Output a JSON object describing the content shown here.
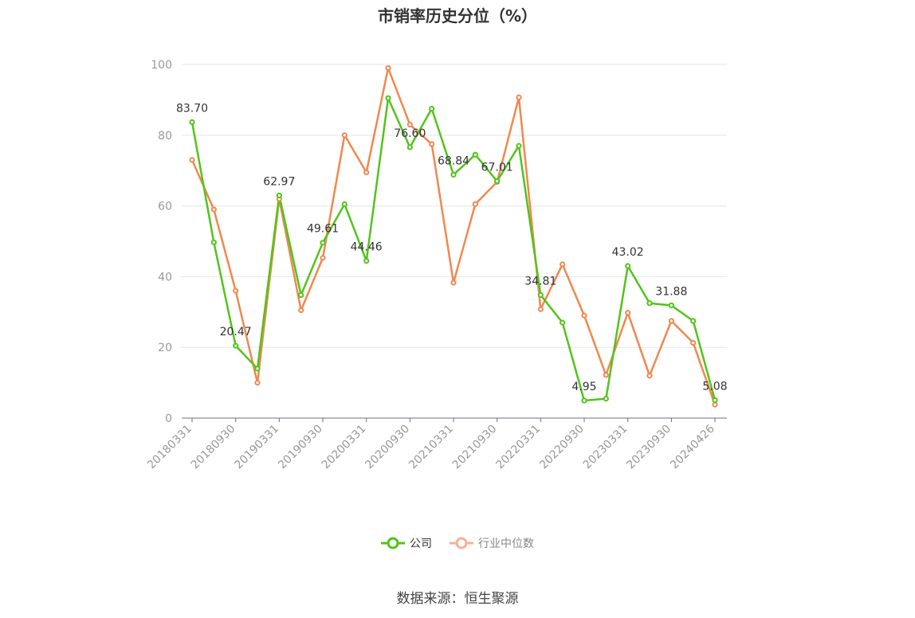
{
  "source_text": "数据来源：恒生聚源",
  "colors": {
    "company": "#52c41a",
    "industry": "#f0884f",
    "industry_legend": "#f7b196",
    "grid": "#e6e6e6",
    "axis": "#6e7079"
  },
  "chart_data": {
    "type": "line",
    "title": "市销率历史分位（%）",
    "xlabel": "",
    "ylabel": "",
    "ylim": [
      0,
      100
    ],
    "yticks": [
      0,
      20,
      40,
      60,
      80,
      100
    ],
    "grid": true,
    "legend_position": "bottom-center",
    "x": [
      "20180331",
      "20180630",
      "20180930",
      "20181231",
      "20190331",
      "20190630",
      "20190930",
      "20191231",
      "20200331",
      "20200630",
      "20200930",
      "20201231",
      "20210331",
      "20210630",
      "20210930",
      "20211231",
      "20220331",
      "20220630",
      "20220930",
      "20221231",
      "20230331",
      "20230630",
      "20230930",
      "20231231",
      "20240426"
    ],
    "xtick_labels": [
      "20180331",
      "20180930",
      "20190331",
      "20190930",
      "20200331",
      "20200930",
      "20210331",
      "20210930",
      "20220331",
      "20220930",
      "20230331",
      "20230930",
      "20240426"
    ],
    "series": [
      {
        "name": "公司",
        "values": [
          83.7,
          49.7,
          20.47,
          14.0,
          62.97,
          34.8,
          49.61,
          60.5,
          44.46,
          90.5,
          76.6,
          87.5,
          68.84,
          74.5,
          67.01,
          77.0,
          34.81,
          27.0,
          4.95,
          5.5,
          43.02,
          32.5,
          31.88,
          27.5,
          5.08
        ],
        "labels": [
          "83.70",
          "",
          "20.47",
          "",
          "62.97",
          "",
          "49.61",
          "",
          "44.46",
          "",
          "76.60",
          "",
          "68.84",
          "",
          "67.01",
          "",
          "34.81",
          "",
          "4.95",
          "",
          "43.02",
          "",
          "31.88",
          "",
          "5.08"
        ]
      },
      {
        "name": "行业中位数",
        "values": [
          73.0,
          59.0,
          36.0,
          10.0,
          62.0,
          30.5,
          45.3,
          80.0,
          69.5,
          99.0,
          83.0,
          77.5,
          38.3,
          60.5,
          66.8,
          90.7,
          30.8,
          43.5,
          29.0,
          12.2,
          29.8,
          12.0,
          27.5,
          21.3,
          3.8
        ]
      }
    ]
  }
}
